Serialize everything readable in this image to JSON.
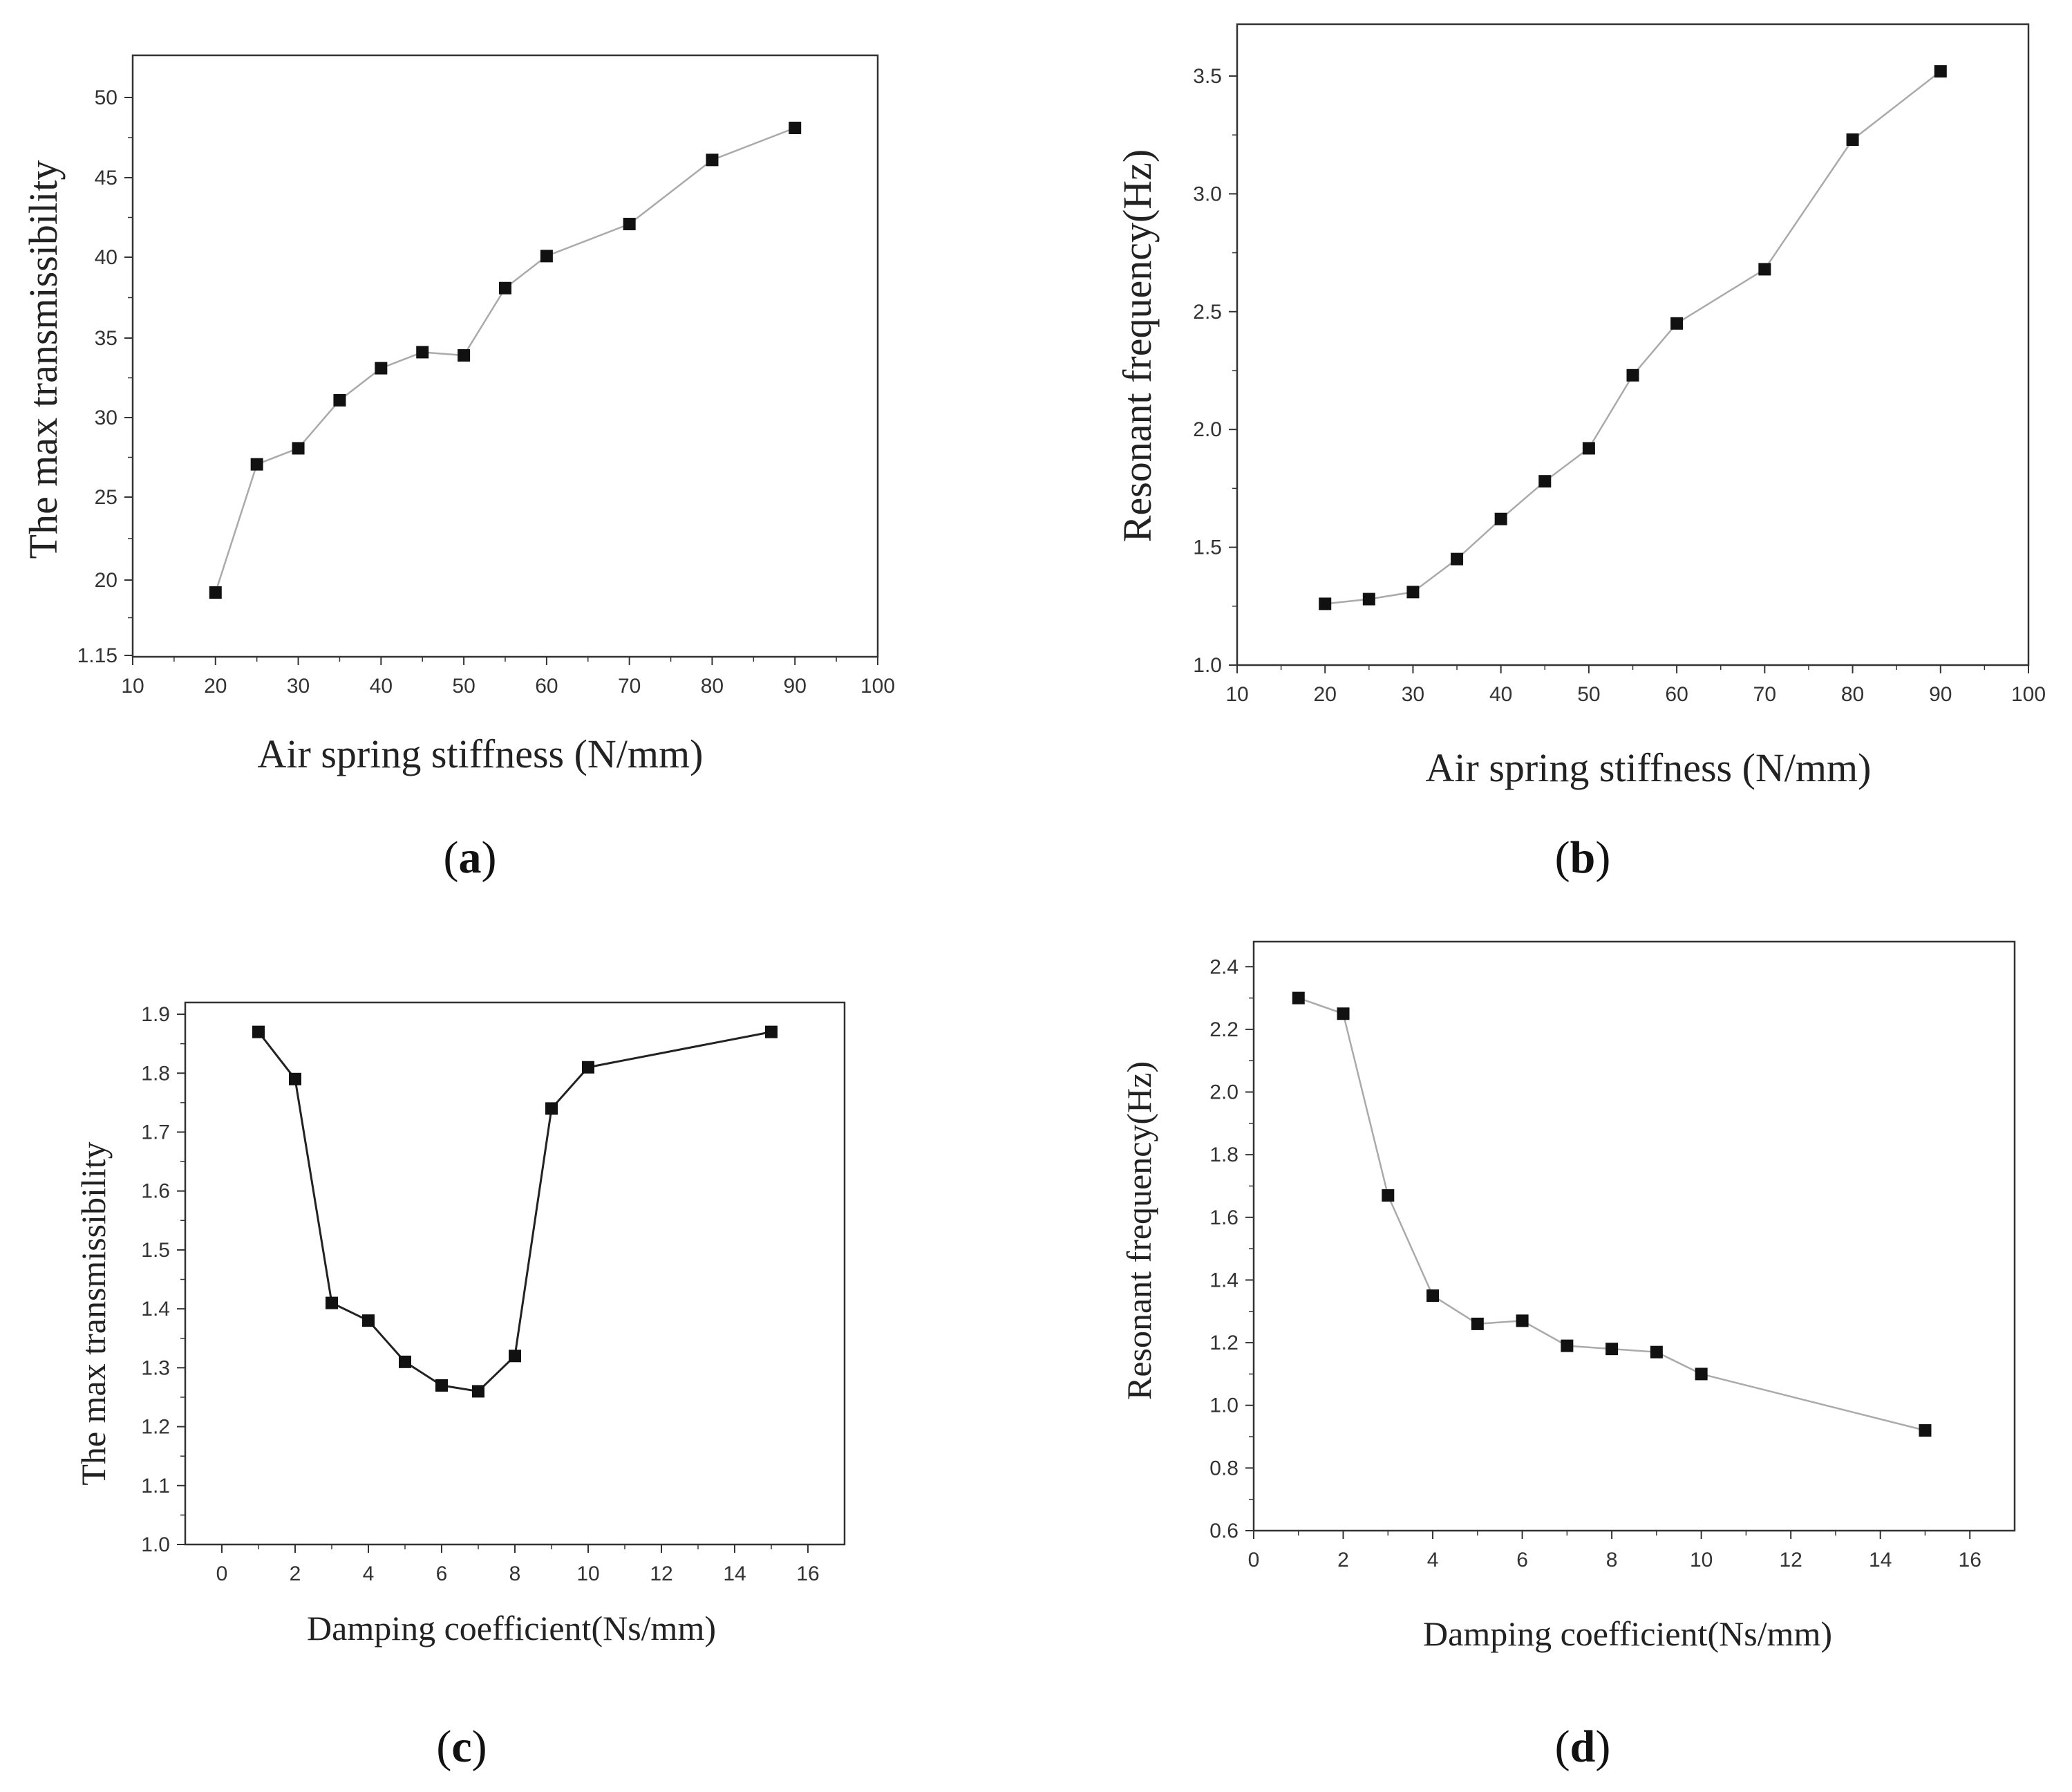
{
  "chart_data": [
    {
      "id": "a",
      "type": "line",
      "panel_label": "a",
      "xlabel": "Air spring stiffness (N/mm)",
      "ylabel": "The max transmissibility",
      "xlim": [
        10,
        100
      ],
      "x_ticks": [
        "10",
        "20",
        "30",
        "40",
        "50",
        "60",
        "70",
        "80",
        "90",
        "100"
      ],
      "y_ticks": [
        "1.15",
        "20",
        "25",
        "30",
        "35",
        "40",
        "45",
        "50"
      ],
      "series": [
        {
          "name": "max transmissibility",
          "x": [
            20,
            25,
            30,
            35,
            40,
            45,
            50,
            55,
            60,
            70,
            80,
            90
          ],
          "values": [
            19,
            27,
            28,
            31,
            33,
            34,
            33.8,
            38,
            40,
            42,
            46,
            48
          ]
        }
      ],
      "line_color": "#aaaaaa",
      "marker_color": "#111111"
    },
    {
      "id": "b",
      "type": "line",
      "panel_label": "b",
      "xlabel": "Air spring stiffness (N/mm)",
      "ylabel": "Resonant frequency(Hz)",
      "xlim": [
        10,
        100
      ],
      "ylim": [
        1.0,
        3.72
      ],
      "x_ticks": [
        "10",
        "20",
        "30",
        "40",
        "50",
        "60",
        "70",
        "80",
        "90",
        "100"
      ],
      "y_ticks": [
        "1.0",
        "1.5",
        "2.0",
        "2.5",
        "3.0",
        "3.5"
      ],
      "series": [
        {
          "name": "resonant frequency",
          "x": [
            20,
            25,
            30,
            35,
            40,
            45,
            50,
            55,
            60,
            70,
            80,
            90
          ],
          "values": [
            1.26,
            1.28,
            1.31,
            1.45,
            1.62,
            1.78,
            1.92,
            2.23,
            2.45,
            2.68,
            3.23,
            3.52
          ]
        }
      ],
      "line_color": "#aaaaaa",
      "marker_color": "#111111"
    },
    {
      "id": "c",
      "type": "line",
      "panel_label": "c",
      "xlabel": "Damping coefficient(Ns/mm)",
      "ylabel": "The max transmissibility",
      "xlim": [
        -1,
        17
      ],
      "ylim": [
        1.0,
        1.92
      ],
      "x_ticks": [
        "0",
        "2",
        "4",
        "6",
        "8",
        "10",
        "12",
        "14",
        "16"
      ],
      "y_ticks": [
        "1.0",
        "1.1",
        "1.2",
        "1.3",
        "1.4",
        "1.5",
        "1.6",
        "1.7",
        "1.8",
        "1.9"
      ],
      "series": [
        {
          "name": "max transmissibility",
          "x": [
            1,
            2,
            3,
            4,
            5,
            6,
            7,
            8,
            9,
            10,
            15
          ],
          "values": [
            1.87,
            1.79,
            1.41,
            1.38,
            1.31,
            1.27,
            1.26,
            1.32,
            1.74,
            1.81,
            1.87
          ]
        }
      ],
      "line_color": "#222222",
      "marker_color": "#111111"
    },
    {
      "id": "d",
      "type": "line",
      "panel_label": "d",
      "xlabel": "Damping coefficient(Ns/mm)",
      "ylabel": "Resonant frequency(Hz)",
      "xlim": [
        0,
        17
      ],
      "ylim": [
        0.6,
        2.48
      ],
      "x_ticks": [
        "0",
        "2",
        "4",
        "6",
        "8",
        "10",
        "12",
        "14",
        "16"
      ],
      "y_ticks": [
        "0.6",
        "0.8",
        "1.0",
        "1.2",
        "1.4",
        "1.6",
        "1.8",
        "2.0",
        "2.2",
        "2.4"
      ],
      "series": [
        {
          "name": "resonant frequency",
          "x": [
            1,
            2,
            3,
            4,
            5,
            6,
            7,
            8,
            9,
            10,
            15
          ],
          "values": [
            2.3,
            2.25,
            1.67,
            1.35,
            1.26,
            1.27,
            1.19,
            1.18,
            1.17,
            1.1,
            0.92
          ]
        }
      ],
      "line_color": "#aaaaaa",
      "marker_color": "#111111"
    }
  ]
}
